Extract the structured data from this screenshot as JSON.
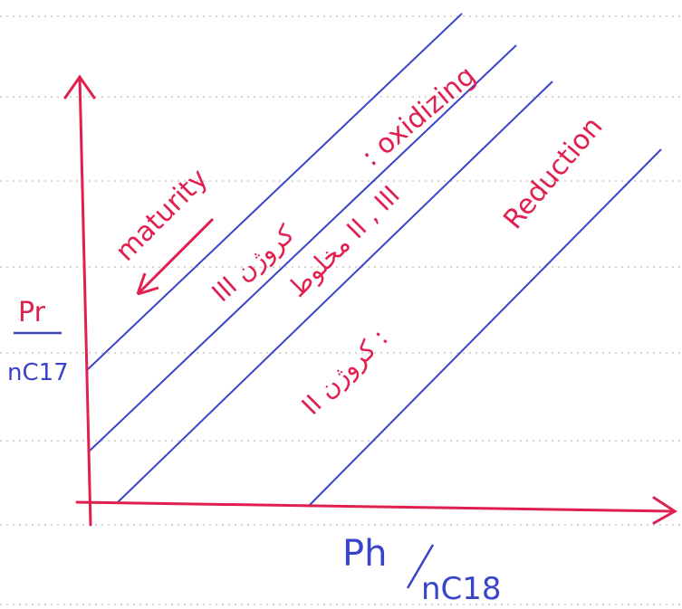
{
  "y_axis": {
    "numerator": "Pr",
    "denominator": "nC17"
  },
  "x_axis": {
    "numerator": "Ph",
    "denominator": "nC18"
  },
  "annotations": {
    "maturity": "maturity",
    "oxidizing": ": oxidizing",
    "reduction": "Reduction"
  },
  "zones": {
    "kerogen_3": "III کروژن",
    "mixed": "مخلوط II , III",
    "kerogen_2": "II کروژن :"
  }
}
